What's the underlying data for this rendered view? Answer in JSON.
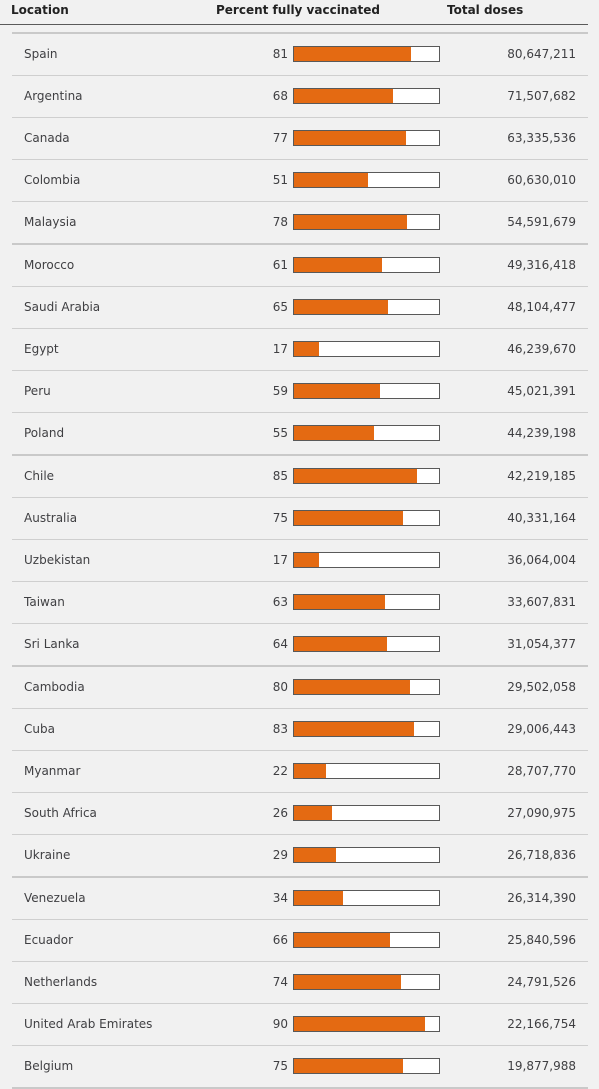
{
  "header": {
    "location": "Location",
    "percent": "Percent fully vaccinated",
    "total": "Total doses"
  },
  "colors": {
    "bar_fill": "#e46a12",
    "bar_track": "#ffffff"
  },
  "chart_data": {
    "type": "table",
    "columns": [
      "Location",
      "Percent fully vaccinated",
      "Total doses"
    ],
    "bar_max": 100,
    "rows": [
      {
        "location": "Spain",
        "percent": 81,
        "total": "80,647,211"
      },
      {
        "location": "Argentina",
        "percent": 68,
        "total": "71,507,682"
      },
      {
        "location": "Canada",
        "percent": 77,
        "total": "63,335,536"
      },
      {
        "location": "Colombia",
        "percent": 51,
        "total": "60,630,010"
      },
      {
        "location": "Malaysia",
        "percent": 78,
        "total": "54,591,679"
      },
      {
        "location": "Morocco",
        "percent": 61,
        "total": "49,316,418"
      },
      {
        "location": "Saudi Arabia",
        "percent": 65,
        "total": "48,104,477"
      },
      {
        "location": "Egypt",
        "percent": 17,
        "total": "46,239,670"
      },
      {
        "location": "Peru",
        "percent": 59,
        "total": "45,021,391"
      },
      {
        "location": "Poland",
        "percent": 55,
        "total": "44,239,198"
      },
      {
        "location": "Chile",
        "percent": 85,
        "total": "42,219,185"
      },
      {
        "location": "Australia",
        "percent": 75,
        "total": "40,331,164"
      },
      {
        "location": "Uzbekistan",
        "percent": 17,
        "total": "36,064,004"
      },
      {
        "location": "Taiwan",
        "percent": 63,
        "total": "33,607,831"
      },
      {
        "location": "Sri Lanka",
        "percent": 64,
        "total": "31,054,377"
      },
      {
        "location": "Cambodia",
        "percent": 80,
        "total": "29,502,058"
      },
      {
        "location": "Cuba",
        "percent": 83,
        "total": "29,006,443"
      },
      {
        "location": "Myanmar",
        "percent": 22,
        "total": "28,707,770"
      },
      {
        "location": "South Africa",
        "percent": 26,
        "total": "27,090,975"
      },
      {
        "location": "Ukraine",
        "percent": 29,
        "total": "26,718,836"
      },
      {
        "location": "Venezuela",
        "percent": 34,
        "total": "26,314,390"
      },
      {
        "location": "Ecuador",
        "percent": 66,
        "total": "25,840,596"
      },
      {
        "location": "Netherlands",
        "percent": 74,
        "total": "24,791,526"
      },
      {
        "location": "United Arab Emirates",
        "percent": 90,
        "total": "22,166,754"
      },
      {
        "location": "Belgium",
        "percent": 75,
        "total": "19,877,988"
      }
    ]
  }
}
